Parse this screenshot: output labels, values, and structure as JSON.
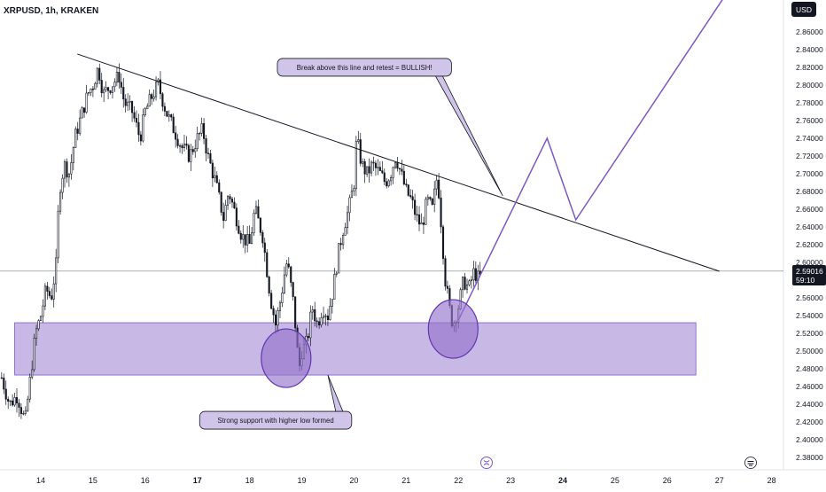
{
  "header": {
    "title": "XRPUSD, 1h, KRAKEN",
    "currency_button": "USD"
  },
  "price_badge": {
    "price": "2.59016",
    "countdown": "59:10"
  },
  "colors": {
    "candle": "#131722",
    "accent": "#7e57c2",
    "zone_fill": "#b39ddb",
    "badge_bg": "#131722",
    "callout_bg": "#d1c4e9",
    "axis_text": "#131722"
  },
  "icons": {
    "crypto_logo": "xrp-logo-icon",
    "settings": "settings-icon"
  },
  "chart_data": {
    "type": "candlestick",
    "instrument": "XRPUSD",
    "timeframe": "1h",
    "exchange": "KRAKEN",
    "y_ticks": [
      "2.86000",
      "2.84000",
      "2.82000",
      "2.80000",
      "2.78000",
      "2.76000",
      "2.74000",
      "2.72000",
      "2.70000",
      "2.68000",
      "2.66000",
      "2.64000",
      "2.62000",
      "2.60000",
      "2.58000",
      "2.56000",
      "2.54000",
      "2.52000",
      "2.50000",
      "2.48000",
      "2.46000",
      "2.44000",
      "2.42000",
      "2.40000",
      "2.38000"
    ],
    "ylim": [
      2.3646,
      2.8959
    ],
    "x_ticks": [
      {
        "label": "14",
        "day": 14,
        "bold": false
      },
      {
        "label": "15",
        "day": 15,
        "bold": false
      },
      {
        "label": "16",
        "day": 16,
        "bold": false
      },
      {
        "label": "17",
        "day": 17,
        "bold": true
      },
      {
        "label": "18",
        "day": 18,
        "bold": false
      },
      {
        "label": "19",
        "day": 19,
        "bold": false
      },
      {
        "label": "20",
        "day": 20,
        "bold": false
      },
      {
        "label": "21",
        "day": 21,
        "bold": false
      },
      {
        "label": "22",
        "day": 22,
        "bold": false
      },
      {
        "label": "23",
        "day": 23,
        "bold": false
      },
      {
        "label": "24",
        "day": 24,
        "bold": true
      },
      {
        "label": "25",
        "day": 25,
        "bold": false
      },
      {
        "label": "26",
        "day": 26,
        "bold": false
      },
      {
        "label": "27",
        "day": 27,
        "bold": false
      },
      {
        "label": "28",
        "day": 28,
        "bold": false
      }
    ],
    "xlim": [
      13.25,
      28.05
    ],
    "last_price": 2.59016,
    "price_path": [
      [
        13.25,
        2.47
      ],
      [
        13.4,
        2.44
      ],
      [
        13.55,
        2.45
      ],
      [
        13.7,
        2.42
      ],
      [
        13.8,
        2.47
      ],
      [
        13.9,
        2.52
      ],
      [
        14.0,
        2.54
      ],
      [
        14.1,
        2.57
      ],
      [
        14.2,
        2.56
      ],
      [
        14.3,
        2.6
      ],
      [
        14.35,
        2.68
      ],
      [
        14.45,
        2.71
      ],
      [
        14.55,
        2.7
      ],
      [
        14.65,
        2.74
      ],
      [
        14.8,
        2.77
      ],
      [
        14.9,
        2.79
      ],
      [
        15.0,
        2.8
      ],
      [
        15.1,
        2.82
      ],
      [
        15.2,
        2.79
      ],
      [
        15.35,
        2.8
      ],
      [
        15.5,
        2.81
      ],
      [
        15.6,
        2.78
      ],
      [
        15.75,
        2.77
      ],
      [
        15.9,
        2.74
      ],
      [
        16.0,
        2.77
      ],
      [
        16.15,
        2.79
      ],
      [
        16.25,
        2.8
      ],
      [
        16.4,
        2.77
      ],
      [
        16.55,
        2.75
      ],
      [
        16.7,
        2.73
      ],
      [
        16.85,
        2.72
      ],
      [
        17.0,
        2.74
      ],
      [
        17.1,
        2.75
      ],
      [
        17.2,
        2.72
      ],
      [
        17.35,
        2.69
      ],
      [
        17.5,
        2.65
      ],
      [
        17.6,
        2.68
      ],
      [
        17.75,
        2.65
      ],
      [
        17.85,
        2.63
      ],
      [
        18.0,
        2.62
      ],
      [
        18.1,
        2.66
      ],
      [
        18.25,
        2.63
      ],
      [
        18.4,
        2.56
      ],
      [
        18.5,
        2.53
      ],
      [
        18.6,
        2.56
      ],
      [
        18.7,
        2.6
      ],
      [
        18.75,
        2.59
      ],
      [
        18.85,
        2.55
      ],
      [
        18.9,
        2.51
      ],
      [
        18.95,
        2.48
      ],
      [
        19.0,
        2.5
      ],
      [
        19.1,
        2.51
      ],
      [
        19.2,
        2.55
      ],
      [
        19.3,
        2.53
      ],
      [
        19.4,
        2.55
      ],
      [
        19.5,
        2.54
      ],
      [
        19.6,
        2.57
      ],
      [
        19.7,
        2.61
      ],
      [
        19.8,
        2.64
      ],
      [
        19.9,
        2.66
      ],
      [
        20.0,
        2.69
      ],
      [
        20.05,
        2.74
      ],
      [
        20.15,
        2.71
      ],
      [
        20.25,
        2.7
      ],
      [
        20.35,
        2.71
      ],
      [
        20.5,
        2.7
      ],
      [
        20.6,
        2.69
      ],
      [
        20.7,
        2.7
      ],
      [
        20.8,
        2.72
      ],
      [
        20.9,
        2.7
      ],
      [
        21.0,
        2.68
      ],
      [
        21.1,
        2.67
      ],
      [
        21.2,
        2.65
      ],
      [
        21.3,
        2.64
      ],
      [
        21.4,
        2.67
      ],
      [
        21.5,
        2.66
      ],
      [
        21.6,
        2.7
      ],
      [
        21.65,
        2.66
      ],
      [
        21.7,
        2.62
      ],
      [
        21.75,
        2.58
      ],
      [
        21.8,
        2.56
      ],
      [
        21.85,
        2.54
      ],
      [
        21.9,
        2.53
      ],
      [
        22.0,
        2.55
      ],
      [
        22.1,
        2.58
      ],
      [
        22.2,
        2.57
      ],
      [
        22.3,
        2.59
      ],
      [
        22.4,
        2.58
      ],
      [
        22.45,
        2.5902
      ]
    ],
    "trendline": {
      "from": [
        14.7,
        2.835
      ],
      "to": [
        27.0,
        2.59
      ]
    },
    "support_zone": {
      "from": 13.5,
      "to": 26.55,
      "low": 2.473,
      "high": 2.532
    },
    "projection": [
      [
        22.0,
        2.535
      ],
      [
        23.7,
        2.74
      ],
      [
        24.25,
        2.648
      ],
      [
        27.1,
        2.9
      ]
    ],
    "circles": [
      {
        "day": 18.7,
        "price": 2.492,
        "rx": 28,
        "ry": 33
      },
      {
        "day": 21.9,
        "price": 2.525,
        "rx": 28,
        "ry": 33
      }
    ],
    "annotations": [
      {
        "text": "Break above this line and retest = BULLISH!",
        "day": 20.2,
        "price": 2.82,
        "pointer": [
          22.85,
          2.675
        ]
      },
      {
        "text": "Strong support with higher low formed",
        "day": 18.5,
        "price": 2.422,
        "pointer": [
          19.5,
          2.473
        ]
      }
    ]
  }
}
